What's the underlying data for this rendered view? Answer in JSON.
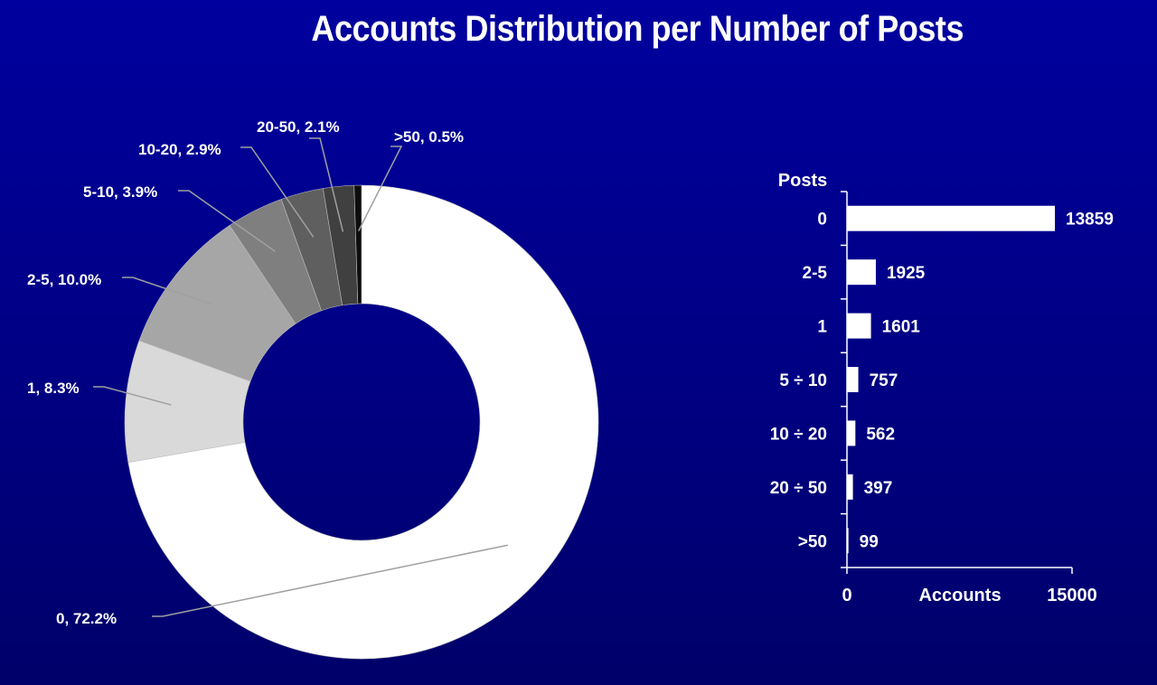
{
  "title": "Accounts Distribution per Number of Posts",
  "chart_data": [
    {
      "type": "pie",
      "variant": "donut",
      "slices": [
        {
          "label": "0",
          "value": 72.2,
          "text": "0, 72.2%",
          "color": "#ffffff"
        },
        {
          "label": "1",
          "value": 8.3,
          "text": "1, 8.3%",
          "color": "#d9d9d9"
        },
        {
          "label": "2-5",
          "value": 10.0,
          "text": "2-5, 10.0%",
          "color": "#a6a6a6"
        },
        {
          "label": "5-10",
          "value": 3.9,
          "text": "5-10, 3.9%",
          "color": "#7f7f7f"
        },
        {
          "label": "10-20",
          "value": 2.9,
          "text": "10-20, 2.9%",
          "color": "#5f5f5f"
        },
        {
          "label": "20-50",
          "value": 2.1,
          "text": "20-50, 2.1%",
          "color": "#404040"
        },
        {
          "label": ">50",
          "value": 0.5,
          "text": ">50, 0.5%",
          "color": "#0d0d0d"
        }
      ]
    },
    {
      "type": "bar",
      "orientation": "horizontal",
      "ylabel": "Posts",
      "xlabel": "Accounts",
      "xlim": [
        0,
        15000
      ],
      "xticks": [
        "0",
        "15000"
      ],
      "categories": [
        "0",
        "2-5",
        "1",
        "5 ÷ 10",
        "10 ÷  20",
        "20 ÷ 50",
        ">50"
      ],
      "values": [
        13859,
        1925,
        1601,
        757,
        562,
        397,
        99
      ],
      "bar_color": "#ffffff"
    }
  ]
}
